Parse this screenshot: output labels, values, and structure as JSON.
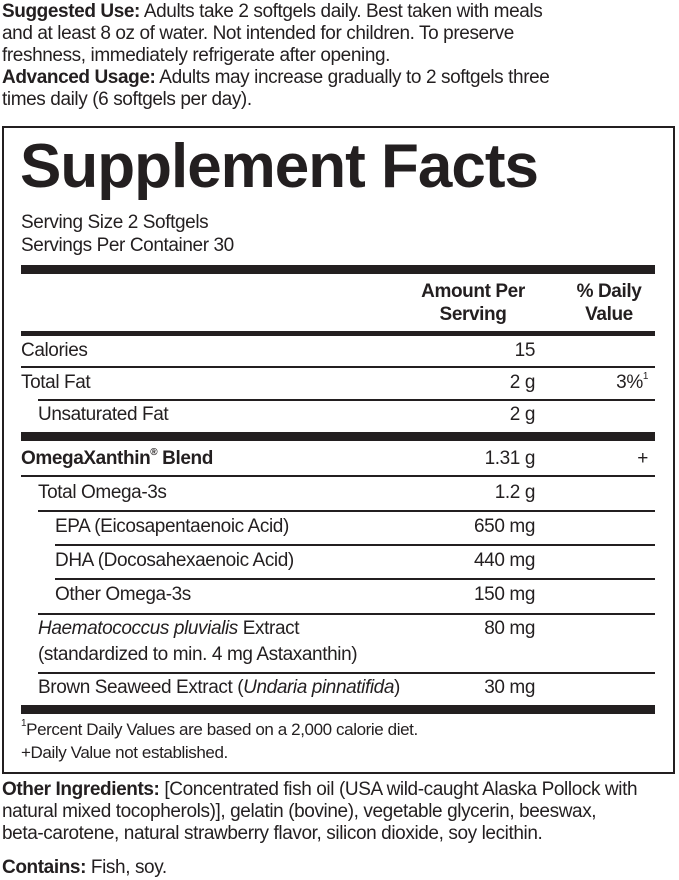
{
  "top": {
    "suggested_label": "Suggested Use:",
    "suggested_lines": [
      "Adults take 2 softgels daily. Best taken with meals",
      "and at least 8 oz of water. Not intended for children. To preserve",
      "freshness, immediately refrigerate after opening."
    ],
    "advanced_label": "Advanced Usage:",
    "advanced_lines": [
      "Adults may increase gradually to 2 softgels three",
      "times daily (6 softgels per day)."
    ]
  },
  "facts": {
    "title": "Supplement Facts",
    "serving_size": "Serving Size 2 Softgels",
    "servings_per_container": "Servings Per Container 30",
    "col_amount": [
      "Amount Per",
      "Serving"
    ],
    "col_dv": [
      "% Daily",
      "Value"
    ],
    "rows": [
      {
        "name": "Calories",
        "amount": "15",
        "dv": ""
      },
      {
        "name": "Total Fat",
        "amount": "2 g",
        "dv": "3%",
        "dv_sup": "1"
      },
      {
        "name": "Unsaturated Fat",
        "amount": "2 g",
        "dv": ""
      },
      {
        "name": "OmegaXanthin",
        "name_sup": "®",
        "name_suffix": " Blend",
        "amount": "1.31 g",
        "dv": "+"
      },
      {
        "name": "Total Omega-3s",
        "amount": "1.2 g",
        "dv": ""
      },
      {
        "name": "EPA (Eicosapentaenoic Acid)",
        "amount": "650 mg",
        "dv": ""
      },
      {
        "name": "DHA (Docosahexaenoic Acid)",
        "amount": "440 mg",
        "dv": ""
      },
      {
        "name": "Other Omega-3s",
        "amount": "150 mg",
        "dv": ""
      },
      {
        "name_italic": "Haematococcus pluvialis",
        "name_suffix": " Extract",
        "name_line2": "(standardized to min. 4 mg Astaxanthin)",
        "amount": "80 mg",
        "dv": ""
      },
      {
        "name": "Brown Seaweed Extract (",
        "name_italic": "Undaria pinnatifida",
        "name_suffix": ")",
        "amount": "30 mg",
        "dv": ""
      }
    ],
    "footnote_sup": "1",
    "footnote1": "Percent Daily Values are based on a 2,000 calorie diet.",
    "footnote2": "+Daily Value not established."
  },
  "bottom": {
    "other_label": "Other Ingredients:",
    "other_lines": [
      "[Concentrated fish oil (USA wild-caught Alaska Pollock with",
      "natural mixed tocopherols)], gelatin (bovine), vegetable glycerin, beeswax,",
      "beta-carotene, natural strawberry flavor, silicon dioxide, soy lecithin."
    ],
    "contains_label": "Contains:",
    "contains_value": "Fish, soy."
  }
}
